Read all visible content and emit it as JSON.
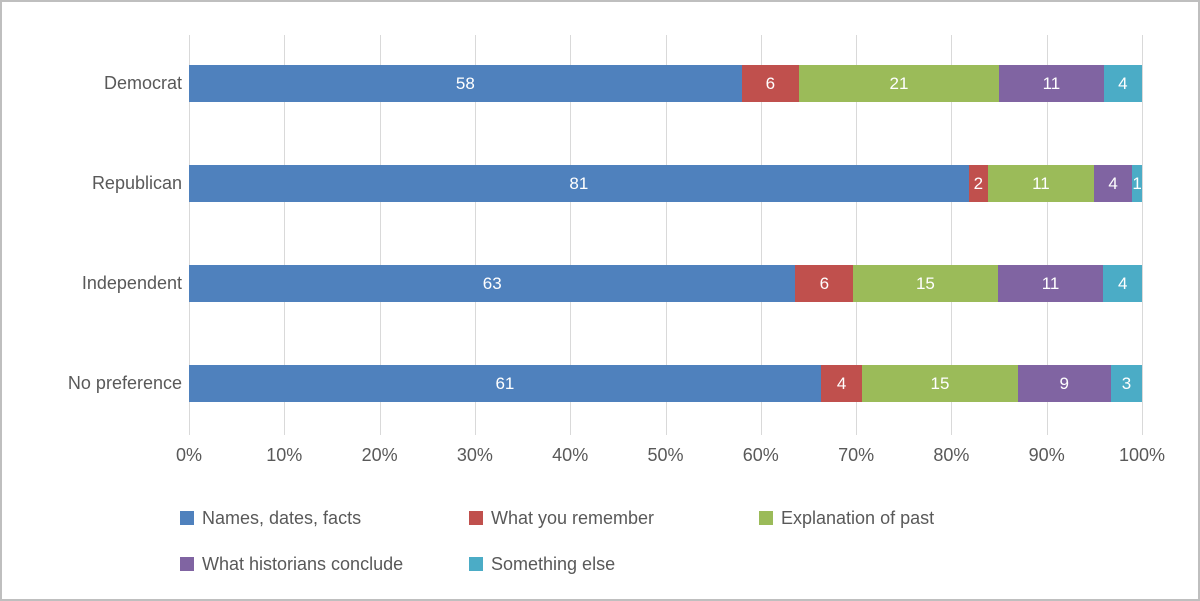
{
  "window": {
    "background_color": "#FFFFFF",
    "frame_border_color": "#BFBFBF"
  },
  "chart_data": {
    "type": "bar",
    "subtype": "100-percent-stacked-horizontal",
    "title": "",
    "categories": [
      "Democrat",
      "Republican",
      "Independent",
      "No preference"
    ],
    "series": [
      {
        "name": "Names, dates, facts",
        "color": "#4F81BD",
        "values": [
          58,
          81,
          63,
          61
        ]
      },
      {
        "name": "What you remember",
        "color": "#C0504D",
        "values": [
          6,
          2,
          6,
          4
        ]
      },
      {
        "name": "Explanation of past",
        "color": "#9BBB59",
        "values": [
          21,
          11,
          15,
          15
        ]
      },
      {
        "name": "What historians conclude",
        "color": "#8064A2",
        "values": [
          11,
          4,
          11,
          9
        ]
      },
      {
        "name": "Something else",
        "color": "#4BACC6",
        "values": [
          4,
          1,
          4,
          3
        ]
      }
    ],
    "x_axis": {
      "min": 0,
      "max": 100,
      "tick_step": 10,
      "tick_labels": [
        "0%",
        "10%",
        "20%",
        "30%",
        "40%",
        "50%",
        "60%",
        "70%",
        "80%",
        "90%",
        "100%"
      ]
    },
    "grid": true,
    "gridline_color": "#D9D9D9",
    "value_labels": {
      "shown": true,
      "color": "#FFFFFF",
      "position": "center-of-segment"
    },
    "axis_text_color": "#595959",
    "legend": {
      "position": "bottom",
      "rows": [
        [
          "Names, dates, facts",
          "What you remember",
          "Explanation of past"
        ],
        [
          "What historians conclude",
          "Something else"
        ]
      ]
    }
  }
}
